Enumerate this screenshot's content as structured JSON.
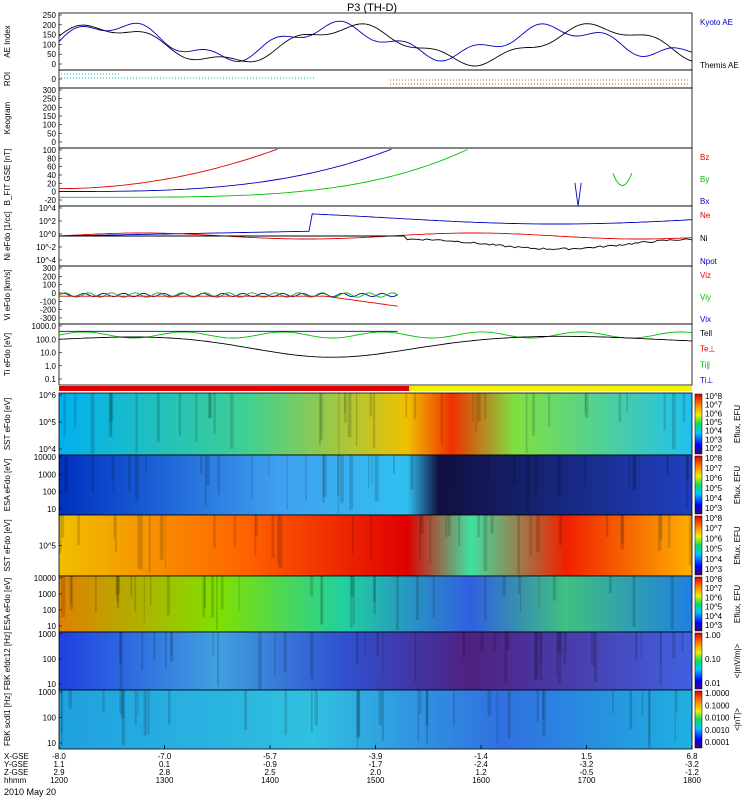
{
  "title": "P3 (TH-D)",
  "date": "2010 May 20",
  "colors": {
    "red": "#e00000",
    "green": "#00c000",
    "blue": "#0000c0",
    "black": "#000000",
    "cyan": "#00b0b0",
    "orange": "#d06000"
  },
  "chart_data": [
    {
      "type": "line",
      "ylabel": "AE Index",
      "ylim": [
        0,
        250
      ],
      "ticks": [
        "250",
        "200",
        "150",
        "100",
        "50",
        "0"
      ],
      "series": [
        {
          "name": "Kyoto AE",
          "color": "#0000c0"
        },
        {
          "name": "Themis AE",
          "color": "#000000"
        }
      ]
    },
    {
      "type": "line",
      "ylabel": "ROI",
      "ticks": [
        "0"
      ],
      "series": []
    },
    {
      "type": "heatmap",
      "ylabel": "Keogram",
      "ylim": [
        0,
        300
      ],
      "ticks": [
        "300",
        "250",
        "200",
        "150",
        "100",
        "50",
        "0"
      ],
      "series": []
    },
    {
      "type": "line",
      "ylabel": "B_FIT GSE [nT]",
      "ylim": [
        -20,
        100
      ],
      "ticks": [
        "100",
        "80",
        "60",
        "40",
        "20",
        "0",
        "-20"
      ],
      "series": [
        {
          "name": "Bz",
          "color": "#e00000"
        },
        {
          "name": "By",
          "color": "#00c000"
        },
        {
          "name": "Bx",
          "color": "#0000c0"
        }
      ]
    },
    {
      "type": "line",
      "ylabel": "Ni eFdo [1/cc]",
      "ylim": [
        "10^-4",
        "10^4"
      ],
      "ticks": [
        "10^4",
        "10^2",
        "10^0",
        "10^-2",
        "10^-4"
      ],
      "series": [
        {
          "name": "Ne",
          "color": "#e00000"
        },
        {
          "name": "Ni",
          "color": "#000000"
        },
        {
          "name": "Npot",
          "color": "#0000c0"
        }
      ]
    },
    {
      "type": "line",
      "ylabel": "Vi eFdo [km/s]",
      "ylim": [
        -300,
        300
      ],
      "ticks": [
        "300",
        "200",
        "100",
        "0",
        "-100",
        "-200",
        "-300"
      ],
      "series": [
        {
          "name": "Viz",
          "color": "#e00000"
        },
        {
          "name": "Viy",
          "color": "#00c000"
        },
        {
          "name": "Vix",
          "color": "#0000c0"
        }
      ]
    },
    {
      "type": "line",
      "ylabel": "Ti eFdo [eV]",
      "ylim": [
        0.1,
        1000
      ],
      "ticks": [
        "1000.0",
        "100.0",
        "10.0",
        "1.0",
        "0.1"
      ],
      "series": [
        {
          "name": "Tell",
          "color": "#000000"
        },
        {
          "name": "Te⊥",
          "color": "#e00000"
        },
        {
          "name": "Ti∥",
          "color": "#00c000"
        },
        {
          "name": "Ti⊥",
          "color": "#0000c0"
        }
      ]
    },
    {
      "type": "heatmap",
      "ylabel": "SST eFdo [eV]",
      "ticks": [
        "10^6",
        "10^5",
        "10^4"
      ],
      "colorbar": [
        "10^8",
        "10^7",
        "10^6",
        "10^5",
        "10^4",
        "10^3",
        "10^2"
      ],
      "cblabel": "Eflux, EFU"
    },
    {
      "type": "heatmap",
      "ylabel": "ESA eFdo [eV]",
      "ticks": [
        "10000",
        "1000",
        "100",
        "10"
      ],
      "colorbar": [
        "10^8",
        "10^7",
        "10^6",
        "10^5",
        "10^4",
        "10^3"
      ],
      "cblabel": "Eflux, EFU"
    },
    {
      "type": "heatmap",
      "ylabel": "SST eFdo [eV]",
      "ticks": [
        "10^5"
      ],
      "colorbar": [
        "10^8",
        "10^7",
        "10^6",
        "10^5",
        "10^4",
        "10^3"
      ],
      "cblabel": "Eflux, EFU"
    },
    {
      "type": "heatmap",
      "ylabel": "ESA eFdo [eV]",
      "ticks": [
        "10000",
        "1000",
        "100",
        "10"
      ],
      "colorbar": [
        "10^8",
        "10^7",
        "10^6",
        "10^5",
        "10^4",
        "10^3"
      ],
      "cblabel": "Eflux, EFU"
    },
    {
      "type": "heatmap",
      "ylabel": "FBK efdc12 [Hz]",
      "ticks": [
        "1000",
        "100",
        "10"
      ],
      "colorbar": [
        "1.00",
        "0.10",
        "0.01"
      ],
      "cblabel": "<|mV/m|>"
    },
    {
      "type": "heatmap",
      "ylabel": "FBK scdl1 [Hz]",
      "ticks": [
        "1000",
        "100",
        "10"
      ],
      "colorbar": [
        "1.0000",
        "0.1000",
        "0.0100",
        "0.0010",
        "0.0001"
      ],
      "cblabel": "<|nT|>"
    }
  ],
  "x_axis": {
    "row_labels": [
      "X-GSE",
      "Y-GSE",
      "Z-GSE",
      "hhmm"
    ],
    "ticks": [
      {
        "vals": [
          "-8.0",
          "1.1",
          "2.9",
          "1200"
        ]
      },
      {
        "vals": [
          "-7.0",
          "0.1",
          "2.8",
          "1300"
        ]
      },
      {
        "vals": [
          "-5.7",
          "-0.9",
          "2.5",
          "1400"
        ]
      },
      {
        "vals": [
          "-3.9",
          "-1.7",
          "2.0",
          "1500"
        ]
      },
      {
        "vals": [
          "-1.4",
          "-2.4",
          "1.2",
          "1600"
        ]
      },
      {
        "vals": [
          "1.5",
          "-3.2",
          "-0.5",
          "1700"
        ]
      },
      {
        "vals": [
          "6.8",
          "-3.2",
          "-1.2",
          "1800"
        ]
      }
    ]
  }
}
